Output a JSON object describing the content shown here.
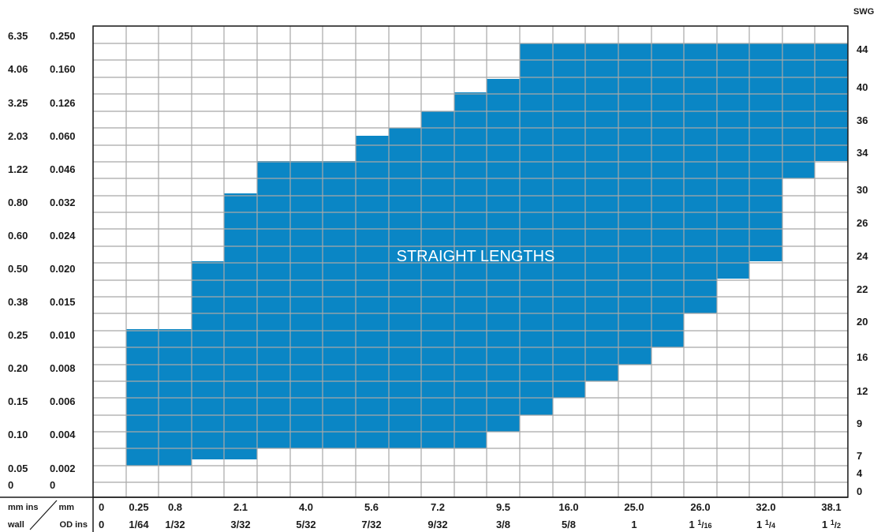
{
  "chart_data": {
    "type": "heatmap",
    "title": "",
    "region_label": "STRAIGHT LENGTHS",
    "colors": {
      "region": "#0A86C5",
      "grid": "#A8A8A8",
      "text": "#1A1A1A",
      "background": "#FFFFFF"
    },
    "x_mm_labels": [
      "0",
      "0.25",
      "0.8",
      "2.1",
      "4.0",
      "5.6",
      "7.2",
      "9.5",
      "16.0",
      "25.0",
      "26.0",
      "32.0",
      "38.1"
    ],
    "x_ins_labels": [
      {
        "whole": "0",
        "num": "",
        "den": ""
      },
      {
        "whole": "",
        "num": "1",
        "den": "64"
      },
      {
        "whole": "",
        "num": "1",
        "den": "32"
      },
      {
        "whole": "",
        "num": "3",
        "den": "32"
      },
      {
        "whole": "",
        "num": "5",
        "den": "32"
      },
      {
        "whole": "",
        "num": "7",
        "den": "32"
      },
      {
        "whole": "",
        "num": "9",
        "den": "32"
      },
      {
        "whole": "",
        "num": "3",
        "den": "8"
      },
      {
        "whole": "",
        "num": "5",
        "den": "8"
      },
      {
        "whole": "1",
        "num": "",
        "den": ""
      },
      {
        "whole": "1",
        "num": "1",
        "den": "16"
      },
      {
        "whole": "1",
        "num": "1",
        "den": "4"
      },
      {
        "whole": "1",
        "num": "1",
        "den": "2"
      }
    ],
    "y_mm_labels": [
      "6.35",
      "4.06",
      "3.25",
      "2.03",
      "1.22",
      "0.80",
      "0.60",
      "0.50",
      "0.38",
      "0.25",
      "0.20",
      "0.15",
      "0.10",
      "0.05",
      "0"
    ],
    "y_ins_labels": [
      "0.250",
      "0.160",
      "0.126",
      "0.060",
      "0.046",
      "0.032",
      "0.024",
      "0.020",
      "0.015",
      "0.010",
      "0.008",
      "0.006",
      "0.004",
      "0.002",
      "0"
    ],
    "swg_title": "SWG",
    "swg_labels": [
      "44",
      "40",
      "36",
      "34",
      "30",
      "26",
      "24",
      "22",
      "20",
      "16",
      "12",
      "9",
      "7",
      "4",
      "0"
    ],
    "corner": {
      "top_left": "mm ins",
      "top_right": "mm",
      "bottom_left": "wall",
      "bottom_right": "OD ins"
    },
    "region_columns": [
      {
        "od_mm": "0.25",
        "wall_min_mm": "0.05",
        "wall_max_mm": "0.25"
      },
      {
        "od_mm": "0.8",
        "wall_min_mm": "0.05",
        "wall_max_mm": "0.25"
      },
      {
        "od_mm": "2.1",
        "wall_min_mm": "0.05",
        "wall_max_mm": "0.50"
      },
      {
        "od_mm": "4.0",
        "wall_min_mm": "0.05",
        "wall_max_mm": "1.22"
      },
      {
        "od_mm": "5.6",
        "wall_min_mm": "0.10",
        "wall_max_mm": "2.03"
      },
      {
        "od_mm": "7.2",
        "wall_min_mm": "0.10",
        "wall_max_mm": "3.25"
      },
      {
        "od_mm": "9.5",
        "wall_min_mm": "0.10",
        "wall_max_mm": "4.06"
      },
      {
        "od_mm": "16.0",
        "wall_min_mm": "0.15",
        "wall_max_mm": "6.35"
      },
      {
        "od_mm": "25.0",
        "wall_min_mm": "0.20",
        "wall_max_mm": "6.35"
      },
      {
        "od_mm": "26.0",
        "wall_min_mm": "0.25",
        "wall_max_mm": "6.35"
      },
      {
        "od_mm": "32.0",
        "wall_min_mm": "0.50",
        "wall_max_mm": "6.35"
      },
      {
        "od_mm": "38.1",
        "wall_min_mm": "1.22",
        "wall_max_mm": "6.35"
      }
    ]
  }
}
